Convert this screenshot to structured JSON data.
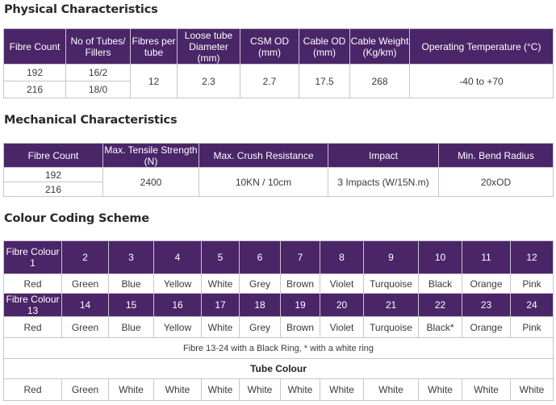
{
  "physical": {
    "title": "Physical Characteristics",
    "headers": {
      "fibre_count": "Fibre Count",
      "tubes": "No of Tubes/ Fillers",
      "fibres_per_tube": "Fibres per tube",
      "loose_tube": "Loose tube Diameter (mm)",
      "csm_od": "CSM OD (mm)",
      "cable_od": "Cable OD (mm)",
      "cable_weight": "Cable Weight (Kg/km)",
      "op_temp": "Operating Temperature (°C)"
    },
    "rows": [
      {
        "fibre_count": "192",
        "tubes": "16/2"
      },
      {
        "fibre_count": "216",
        "tubes": "18/0"
      }
    ],
    "shared": {
      "fibres_per_tube": "12",
      "loose_tube": "2.3",
      "csm_od": "2.7",
      "cable_od": "17.5",
      "cable_weight": "268",
      "op_temp": "-40 to +70"
    }
  },
  "mechanical": {
    "title": "Mechanical Characteristics",
    "headers": {
      "fibre_count": "Fibre Count",
      "tensile": "Max. Tensile Strength (N)",
      "crush": "Max. Crush Resistance",
      "impact": "Impact",
      "bend": "Min. Bend Radius"
    },
    "rows": [
      "192",
      "216"
    ],
    "shared": {
      "tensile": "2400",
      "crush": "10KN / 10cm",
      "impact": "3 Impacts (W/15N.m)",
      "bend": "20xOD"
    }
  },
  "colour": {
    "title": "Colour Coding Scheme",
    "header1_label": "Fibre Colour 1",
    "header1_numbers": [
      "2",
      "3",
      "4",
      "5",
      "6",
      "7",
      "8",
      "9",
      "10",
      "11",
      "12"
    ],
    "row1_colours": [
      "Red",
      "Green",
      "Blue",
      "Yellow",
      "White",
      "Grey",
      "Brown",
      "Violet",
      "Turquoise",
      "Black",
      "Orange",
      "Pink"
    ],
    "header2_label": "Fibre Colour 13",
    "header2_numbers": [
      "14",
      "15",
      "16",
      "17",
      "18",
      "19",
      "20",
      "21",
      "22",
      "23",
      "24"
    ],
    "row2_colours": [
      "Red",
      "Green",
      "Blue",
      "Yellow",
      "White",
      "Grey",
      "Brown",
      "Violet",
      "Turquoise",
      "Black*",
      "Orange",
      "Pink"
    ],
    "note": "Fibre 13-24 with a Black Ring, * with a white ring",
    "tube_title": "Tube Colour",
    "tube_colours": [
      "Red",
      "Green",
      "White",
      "White",
      "White",
      "White",
      "White",
      "White",
      "White",
      "White",
      "White",
      "White"
    ]
  }
}
